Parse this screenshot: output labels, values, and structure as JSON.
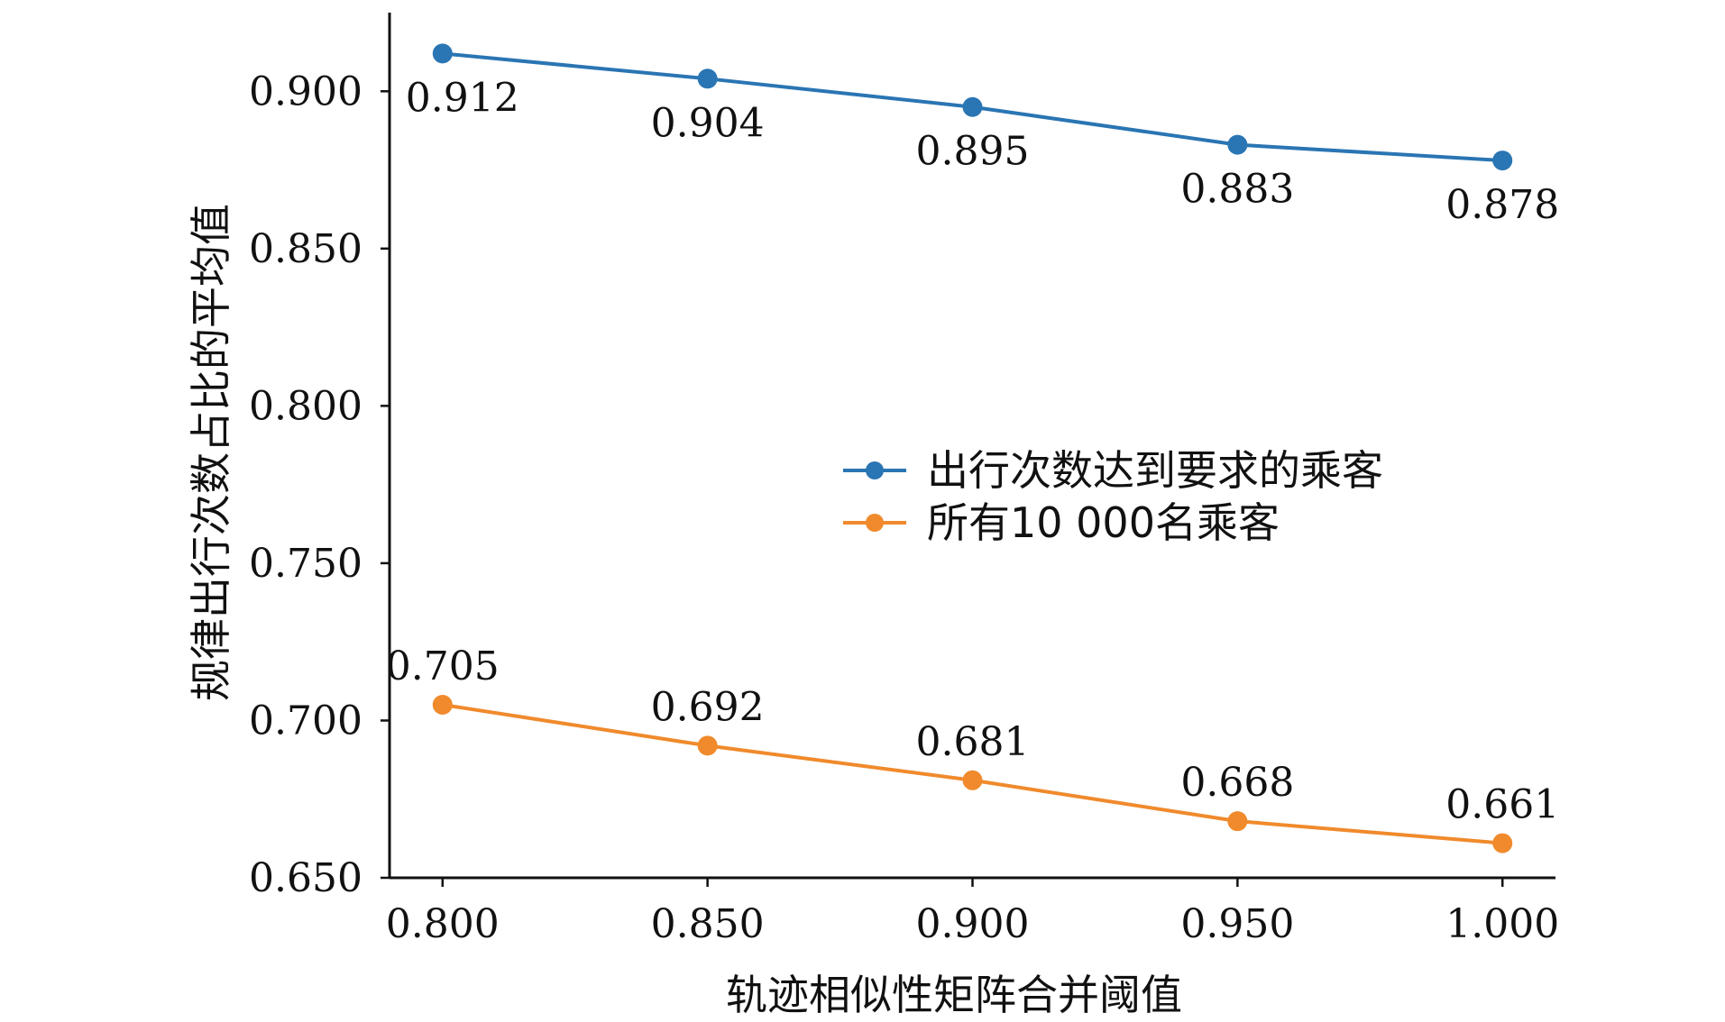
{
  "chart_data": {
    "type": "line",
    "title": "",
    "xlabel": "轨迹相似性矩阵合并阈值",
    "ylabel": "规律出行次数占比的平均值",
    "x": [
      0.8,
      0.85,
      0.9,
      0.95,
      1.0
    ],
    "x_tick_labels": [
      "0.800",
      "0.850",
      "0.900",
      "0.950",
      "1.000"
    ],
    "y_ticks": [
      0.65,
      0.7,
      0.75,
      0.8,
      0.85,
      0.9
    ],
    "y_tick_labels": [
      "0.650",
      "0.700",
      "0.750",
      "0.800",
      "0.850",
      "0.900"
    ],
    "xlim": [
      0.79,
      1.01
    ],
    "ylim": [
      0.65,
      0.925
    ],
    "legend_position": "center-right",
    "series": [
      {
        "name": "出行次数达到要求的乘客",
        "color": "#2a75b3",
        "values": [
          0.912,
          0.904,
          0.895,
          0.883,
          0.878
        ],
        "labels": [
          "0.912",
          "0.904",
          "0.895",
          "0.883",
          "0.878"
        ],
        "label_side": "below"
      },
      {
        "name": "所有10 000名乘客",
        "color": "#f08a2c",
        "values": [
          0.705,
          0.692,
          0.681,
          0.668,
          0.661
        ],
        "labels": [
          "0.705",
          "0.692",
          "0.681",
          "0.668",
          "0.661"
        ],
        "label_side": "above"
      }
    ]
  }
}
